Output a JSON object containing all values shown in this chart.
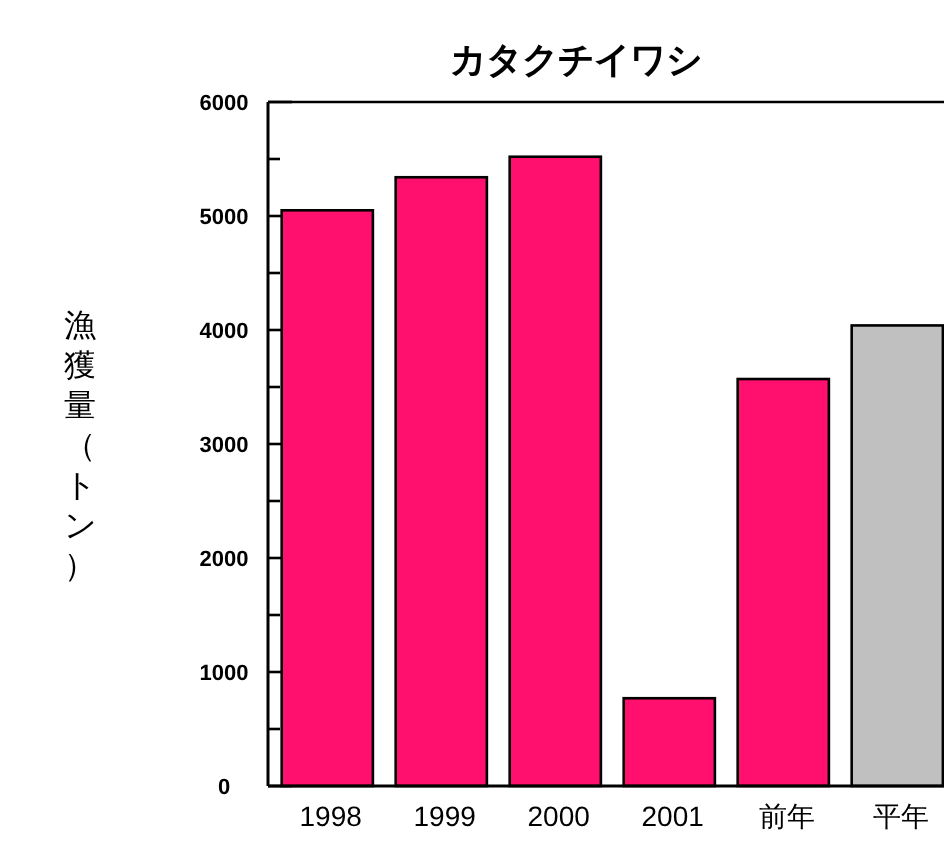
{
  "chart_data": {
    "type": "bar",
    "title": "カタクチイワシ",
    "ylabel": "漁獲量（トン）",
    "categories": [
      "1998",
      "1999",
      "2000",
      "2001",
      "前年",
      "平年"
    ],
    "values": [
      5050,
      5340,
      5520,
      770,
      3570,
      4040
    ],
    "colors": [
      "#ff0f6e",
      "#ff0f6e",
      "#ff0f6e",
      "#ff0f6e",
      "#ff0f6e",
      "#c0c0c0"
    ],
    "ylim": [
      0,
      6000
    ],
    "yticks": [
      0,
      {
        "value": 500,
        "label": null
      },
      1000,
      {
        "value": 1500,
        "label": null
      },
      2000,
      {
        "value": 2500,
        "label": null
      },
      3000,
      {
        "value": 3500,
        "label": null
      },
      4000,
      {
        "value": 4500,
        "label": null
      },
      5000,
      {
        "value": 5500,
        "label": null
      },
      6000
    ],
    "grid": false
  }
}
